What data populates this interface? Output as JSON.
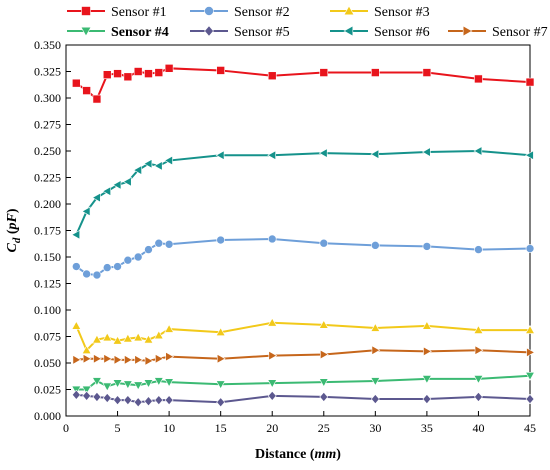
{
  "chart_data": {
    "type": "line",
    "xlabel": "Distance (mm)",
    "xlabel_parts": {
      "main": "Distance (",
      "unit": "mm",
      "close": ")"
    },
    "ylabel": "Cd (pF)",
    "ylabel_parts": {
      "symbol": "C",
      "subscript": "d",
      "unit_open": " (",
      "unit": "pF",
      "unit_close": ")"
    },
    "xlim": [
      0,
      45
    ],
    "ylim": [
      0,
      0.35
    ],
    "xticks": [
      0,
      5,
      10,
      15,
      20,
      25,
      30,
      35,
      40,
      45
    ],
    "xtick_labels": [
      "0",
      "5",
      "10",
      "15",
      "20",
      "25",
      "30",
      "35",
      "40",
      "45"
    ],
    "yticks": [
      0,
      0.025,
      0.05,
      0.075,
      0.1,
      0.125,
      0.15,
      0.175,
      0.2,
      0.225,
      0.25,
      0.275,
      0.3,
      0.325,
      0.35
    ],
    "ytick_labels": [
      "0.000",
      "0.025",
      "0.050",
      "0.075",
      "0.100",
      "0.125",
      "0.150",
      "0.175",
      "0.200",
      "0.225",
      "0.250",
      "0.275",
      "0.300",
      "0.325",
      "0.350"
    ],
    "grid": false,
    "legend_position": "top",
    "x": [
      1,
      2,
      3,
      4,
      5,
      6,
      7,
      8,
      9,
      10,
      15,
      20,
      25,
      30,
      35,
      40,
      45
    ],
    "series": [
      {
        "name": "Sensor #1",
        "color": "#e8141c",
        "marker": "square",
        "bold": false,
        "values": [
          0.314,
          0.307,
          0.299,
          0.322,
          0.323,
          0.32,
          0.325,
          0.323,
          0.324,
          0.328,
          0.326,
          0.321,
          0.324,
          0.324,
          0.324,
          0.318,
          0.315
        ]
      },
      {
        "name": "Sensor #2",
        "color": "#6e9fd9",
        "marker": "circle",
        "bold": false,
        "values": [
          0.141,
          0.134,
          0.133,
          0.14,
          0.141,
          0.147,
          0.15,
          0.157,
          0.163,
          0.162,
          0.166,
          0.167,
          0.163,
          0.161,
          0.16,
          0.157,
          0.158
        ]
      },
      {
        "name": "Sensor #3",
        "color": "#f2c91a",
        "marker": "triangle-up",
        "bold": false,
        "values": [
          0.085,
          0.062,
          0.072,
          0.074,
          0.071,
          0.073,
          0.074,
          0.072,
          0.076,
          0.082,
          0.079,
          0.088,
          0.086,
          0.083,
          0.085,
          0.081,
          0.081
        ]
      },
      {
        "name": "Sensor #4",
        "color": "#3bba73",
        "marker": "triangle-down",
        "bold": true,
        "values": [
          0.025,
          0.025,
          0.033,
          0.028,
          0.031,
          0.03,
          0.029,
          0.031,
          0.033,
          0.032,
          0.03,
          0.031,
          0.032,
          0.033,
          0.035,
          0.035,
          0.038
        ]
      },
      {
        "name": "Sensor #5",
        "color": "#5c588f",
        "marker": "diamond",
        "bold": false,
        "values": [
          0.02,
          0.019,
          0.018,
          0.017,
          0.015,
          0.015,
          0.013,
          0.014,
          0.015,
          0.015,
          0.013,
          0.019,
          0.018,
          0.016,
          0.016,
          0.018,
          0.016
        ]
      },
      {
        "name": "Sensor #6",
        "color": "#15928b",
        "marker": "triangle-left",
        "bold": false,
        "values": [
          0.171,
          0.193,
          0.206,
          0.212,
          0.218,
          0.221,
          0.232,
          0.238,
          0.236,
          0.241,
          0.246,
          0.246,
          0.248,
          0.247,
          0.249,
          0.25,
          0.246
        ]
      },
      {
        "name": "Sensor #7",
        "color": "#c6661b",
        "marker": "triangle-right",
        "bold": false,
        "values": [
          0.053,
          0.054,
          0.054,
          0.054,
          0.053,
          0.053,
          0.053,
          0.052,
          0.054,
          0.056,
          0.054,
          0.057,
          0.058,
          0.062,
          0.061,
          0.062,
          0.06
        ]
      }
    ]
  }
}
